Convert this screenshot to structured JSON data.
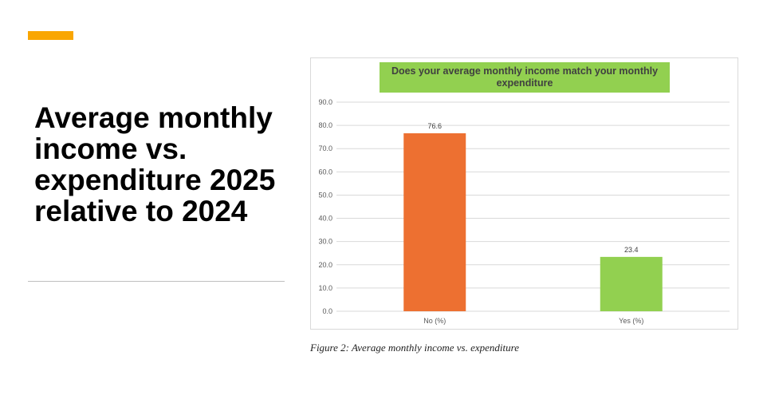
{
  "slide": {
    "title": "Average monthly income vs. expenditure 2025 relative to 2024",
    "accent_color": "#F9A602",
    "caption": "Figure 2: Average monthly income vs. expenditure"
  },
  "chart_data": {
    "type": "bar",
    "title": "Does your average monthly income match your monthly expenditure",
    "title_background": "#92D050",
    "categories": [
      "No (%)",
      "Yes (%)"
    ],
    "values": [
      76.6,
      23.4
    ],
    "value_labels": [
      "76.6",
      "23.4"
    ],
    "bar_colors": [
      "#ED7031",
      "#92D050"
    ],
    "ylim": [
      0,
      90
    ],
    "yticks": [
      "0.0",
      "10.0",
      "20.0",
      "30.0",
      "40.0",
      "50.0",
      "60.0",
      "70.0",
      "80.0",
      "90.0"
    ],
    "grid": true,
    "legend": "none",
    "xlabel": "",
    "ylabel": ""
  }
}
